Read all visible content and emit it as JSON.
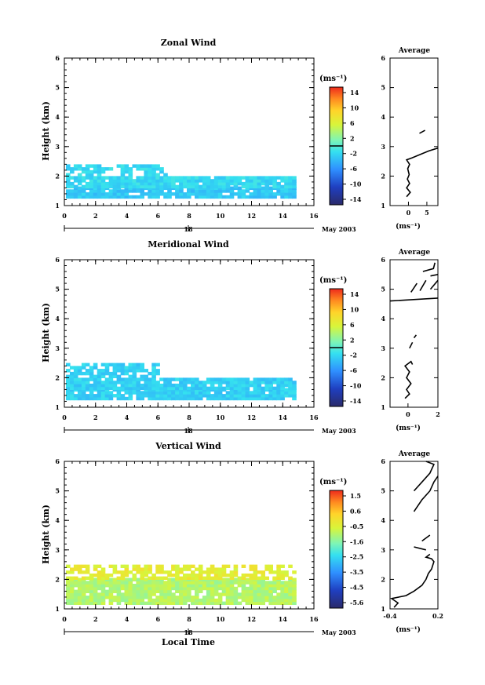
{
  "chart_data": [
    {
      "type": "heatmap",
      "title": "Zonal Wind",
      "ylabel": "Height (km)",
      "xticks": [
        "0",
        "2",
        "4",
        "6",
        "8",
        "10",
        "12",
        "14",
        "16"
      ],
      "yticks": [
        "1",
        "2",
        "3",
        "4",
        "5",
        "6"
      ],
      "xlim": [
        0,
        16
      ],
      "ylim": [
        1,
        6
      ],
      "day_label": "18",
      "date_label": "May 2003",
      "colorbar": {
        "unit": "(ms⁻¹)",
        "ticks": [
          "14",
          "10",
          "6",
          "2",
          "-2",
          "-6",
          "-10",
          "-14"
        ],
        "range": [
          -16,
          16
        ]
      },
      "dominant_value": -2.5,
      "data_regions": [
        {
          "x": [
            0.1,
            14.8
          ],
          "y": [
            1.25,
            1.6
          ],
          "value": -3
        },
        {
          "x": [
            0.1,
            14.8
          ],
          "y": [
            1.6,
            2.0
          ],
          "value": -2
        },
        {
          "x": [
            0.1,
            6.5
          ],
          "y": [
            2.0,
            2.4
          ],
          "value": -2
        }
      ],
      "profile": {
        "title": "Average",
        "xlabel": "(ms⁻¹)",
        "xticks": [
          "0",
          "5"
        ],
        "xlim": [
          -5,
          8
        ],
        "ylim": [
          1,
          6
        ],
        "yticks": [
          "1",
          "2",
          "3",
          "4",
          "5",
          "6"
        ],
        "segments": [
          [
            [
              -0.5,
              1.3
            ],
            [
              0.5,
              1.45
            ],
            [
              -0.5,
              1.6
            ],
            [
              0.3,
              1.75
            ],
            [
              -0.3,
              1.9
            ],
            [
              0.2,
              2.05
            ],
            [
              -0.2,
              2.25
            ],
            [
              0.3,
              2.4
            ],
            [
              -0.5,
              2.55
            ],
            [
              1.0,
              2.62
            ],
            [
              3.0,
              2.72
            ],
            [
              5.5,
              2.85
            ],
            [
              8.0,
              2.95
            ]
          ],
          [
            [
              3.0,
              3.45
            ],
            [
              4.5,
              3.55
            ]
          ]
        ]
      }
    },
    {
      "type": "heatmap",
      "title": "Meridional Wind",
      "ylabel": "Height (km)",
      "xticks": [
        "0",
        "2",
        "4",
        "6",
        "8",
        "10",
        "12",
        "14",
        "16"
      ],
      "yticks": [
        "1",
        "2",
        "3",
        "4",
        "5",
        "6"
      ],
      "xlim": [
        0,
        16
      ],
      "ylim": [
        1,
        6
      ],
      "day_label": "18",
      "date_label": "May 2003",
      "colorbar": {
        "unit": "(ms⁻¹)",
        "ticks": [
          "14",
          "10",
          "6",
          "2",
          "-2",
          "-6",
          "-10",
          "-14"
        ],
        "range": [
          -16,
          16
        ]
      },
      "dominant_value": -2.5,
      "data_regions": [
        {
          "x": [
            0.1,
            14.8
          ],
          "y": [
            1.25,
            1.6
          ],
          "value": -2.5
        },
        {
          "x": [
            0.1,
            14.8
          ],
          "y": [
            1.6,
            2.0
          ],
          "value": -2.5
        },
        {
          "x": [
            0.1,
            6.0
          ],
          "y": [
            2.0,
            2.45
          ],
          "value": -2.5
        }
      ],
      "profile": {
        "title": "Average",
        "xlabel": "(ms⁻¹)",
        "xticks": [
          "0",
          "2"
        ],
        "xlim": [
          -1.2,
          2
        ],
        "ylim": [
          1,
          6
        ],
        "yticks": [
          "1",
          "2",
          "3",
          "4",
          "5",
          "6"
        ],
        "segments": [
          [
            [
              -0.2,
              1.3
            ],
            [
              0.1,
              1.45
            ],
            [
              -0.1,
              1.6
            ],
            [
              0.2,
              1.8
            ],
            [
              -0.1,
              2.0
            ],
            [
              0.1,
              2.2
            ],
            [
              -0.2,
              2.4
            ],
            [
              0.2,
              2.55
            ],
            [
              0.3,
              2.45
            ]
          ],
          [
            [
              0.1,
              3.0
            ],
            [
              0.3,
              3.2
            ]
          ],
          [
            [
              0.4,
              3.35
            ],
            [
              0.55,
              3.45
            ]
          ],
          [
            [
              -1.2,
              4.6
            ],
            [
              2.0,
              4.7
            ]
          ],
          [
            [
              0.2,
              4.9
            ],
            [
              0.6,
              5.2
            ]
          ],
          [
            [
              0.8,
              4.95
            ],
            [
              1.2,
              5.3
            ]
          ],
          [
            [
              1.5,
              5.0
            ],
            [
              2.0,
              5.3
            ]
          ],
          [
            [
              1.5,
              5.45
            ],
            [
              2.0,
              5.5
            ]
          ],
          [
            [
              1.0,
              5.6
            ],
            [
              1.7,
              5.7
            ],
            [
              1.8,
              5.9
            ]
          ]
        ]
      }
    },
    {
      "type": "heatmap",
      "title": "Vertical Wind",
      "ylabel": "Height (km)",
      "xlabel": "Local Time",
      "xticks": [
        "0",
        "2",
        "4",
        "6",
        "8",
        "10",
        "12",
        "14",
        "16"
      ],
      "yticks": [
        "1",
        "2",
        "3",
        "4",
        "5",
        "6"
      ],
      "xlim": [
        0,
        16
      ],
      "ylim": [
        1,
        6
      ],
      "day_label": "18",
      "date_label": "May 2003",
      "colorbar": {
        "unit": "(ms⁻¹)",
        "ticks": [
          "1.5",
          "0.6",
          "-0.5",
          "-1.6",
          "-2.5",
          "-3.5",
          "-4.5",
          "-5.6"
        ],
        "range": [
          -6,
          2
        ]
      },
      "dominant_value": -0.6,
      "data_regions": [
        {
          "x": [
            0.1,
            14.8
          ],
          "y": [
            1.15,
            2.0
          ],
          "value": -1.0
        },
        {
          "x": [
            0.1,
            14.8
          ],
          "y": [
            2.0,
            2.5
          ],
          "value": -0.3
        }
      ],
      "profile": {
        "title": "Average",
        "xlabel": "(ms⁻¹)",
        "xticks": [
          "-0.4",
          "0.2"
        ],
        "xlim": [
          -0.4,
          0.2
        ],
        "ylim": [
          1,
          6
        ],
        "yticks": [
          "1",
          "2",
          "3",
          "4",
          "5",
          "6"
        ],
        "segments": [
          [
            [
              -0.35,
              1.05
            ],
            [
              -0.3,
              1.2
            ],
            [
              -0.38,
              1.35
            ],
            [
              -0.2,
              1.45
            ],
            [
              -0.1,
              1.6
            ],
            [
              0.0,
              1.8
            ],
            [
              0.05,
              2.0
            ],
            [
              0.08,
              2.2
            ],
            [
              0.12,
              2.35
            ],
            [
              0.15,
              2.6
            ],
            [
              0.12,
              2.7
            ],
            [
              0.05,
              2.75
            ],
            [
              0.1,
              2.85
            ]
          ],
          [
            [
              0.0,
              3.3
            ],
            [
              0.1,
              3.5
            ]
          ],
          [
            [
              0.05,
              3.0
            ],
            [
              -0.1,
              3.1
            ]
          ],
          [
            [
              -0.1,
              4.3
            ],
            [
              0.0,
              4.7
            ],
            [
              0.1,
              5.0
            ],
            [
              0.15,
              5.3
            ],
            [
              0.2,
              5.5
            ]
          ],
          [
            [
              -0.1,
              5.0
            ],
            [
              0.0,
              5.3
            ],
            [
              0.1,
              5.6
            ],
            [
              0.15,
              5.9
            ],
            [
              0.05,
              6.0
            ]
          ]
        ]
      }
    }
  ]
}
